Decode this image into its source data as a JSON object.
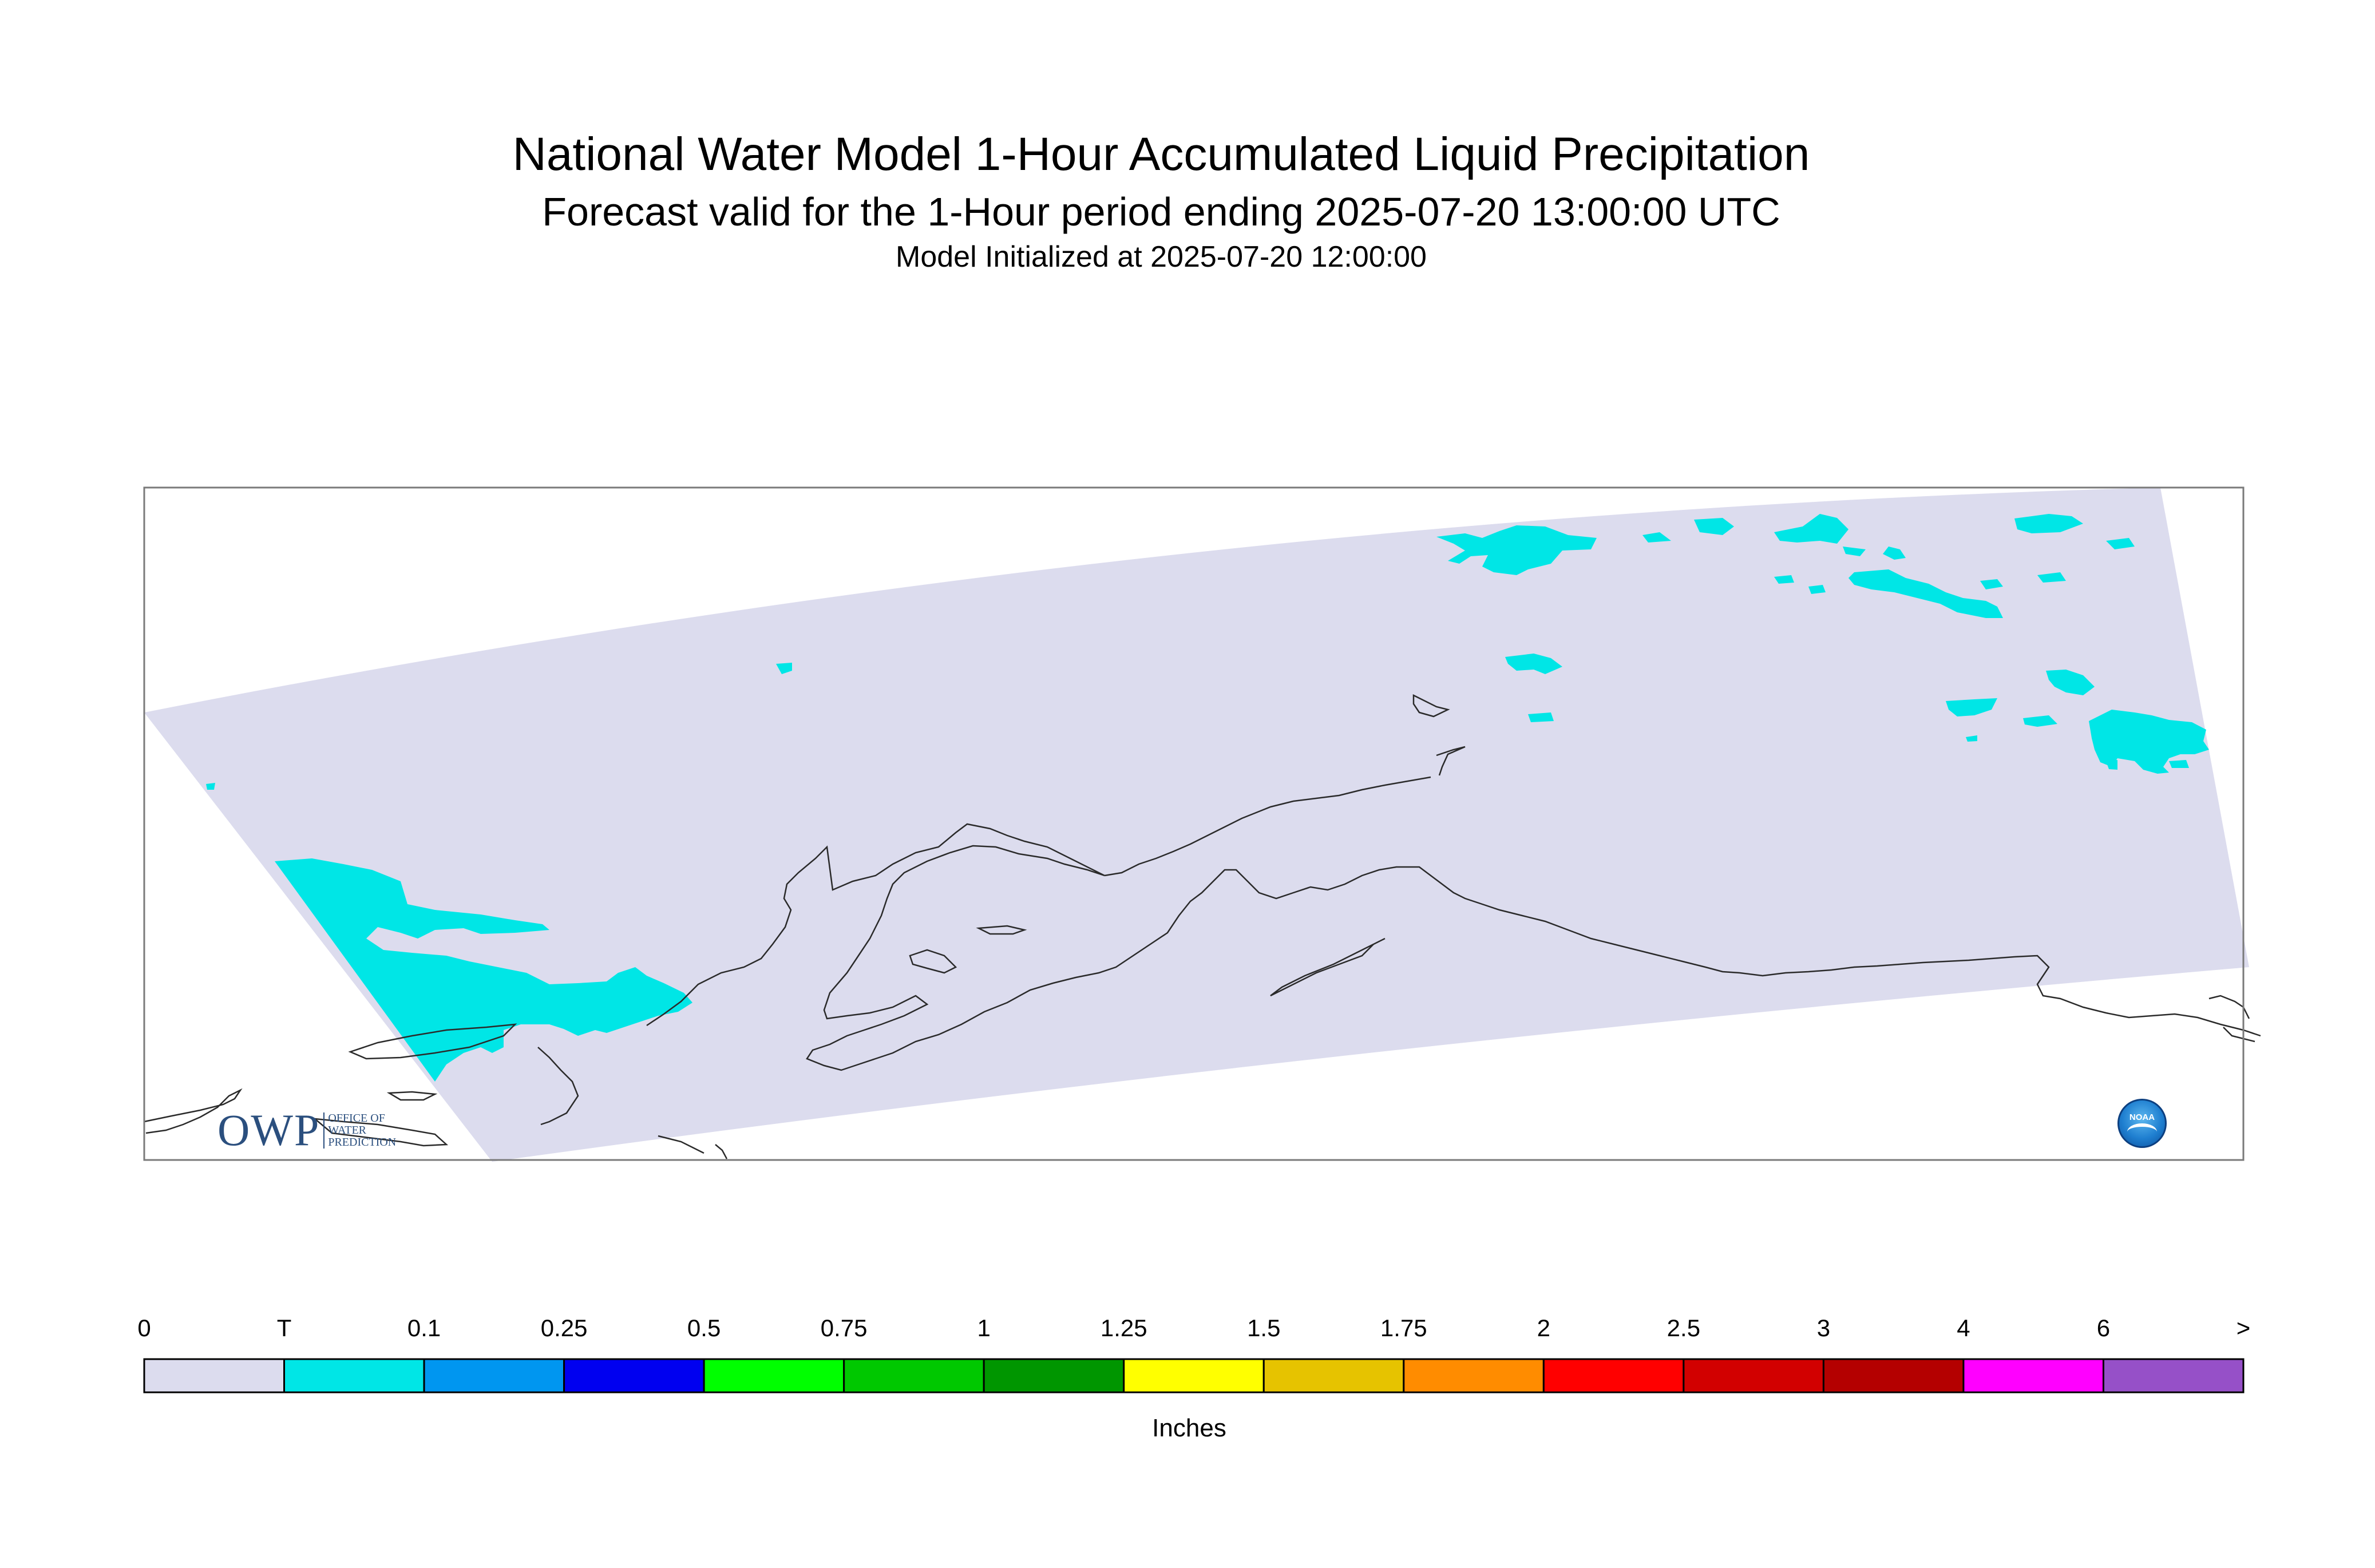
{
  "title": "National Water Model 1-Hour Accumulated Liquid Precipitation",
  "subtitle": "Forecast valid for the 1-Hour period ending 2025-07-20 13:00:00 UTC",
  "init_line": "Model Initialized at 2025-07-20 12:00:00",
  "logos": {
    "owp_main": "OWP",
    "owp_sub": [
      "OFFICE OF",
      "WATER",
      "PREDICTION"
    ],
    "noaa": "NOAA"
  },
  "colors": {
    "domain_fill": "#dcdcee",
    "trace": "#00e6e6",
    "coastline": "#2a2a2a",
    "frame": "#7a7a7a"
  },
  "legend": {
    "unit": "Inches",
    "labels": [
      "0",
      "T",
      "0.1",
      "0.25",
      "0.5",
      "0.75",
      "1",
      "1.25",
      "1.5",
      "1.75",
      "2",
      "2.5",
      "3",
      "4",
      "6",
      ">"
    ],
    "colors": [
      "#dcdcee",
      "#00e6e6",
      "#0096f0",
      "#0000f0",
      "#00ff00",
      "#00c800",
      "#009600",
      "#ffff00",
      "#e6c300",
      "#ff8c00",
      "#ff0000",
      "#d20000",
      "#b40000",
      "#ff00ff",
      "#9650c8"
    ]
  }
}
